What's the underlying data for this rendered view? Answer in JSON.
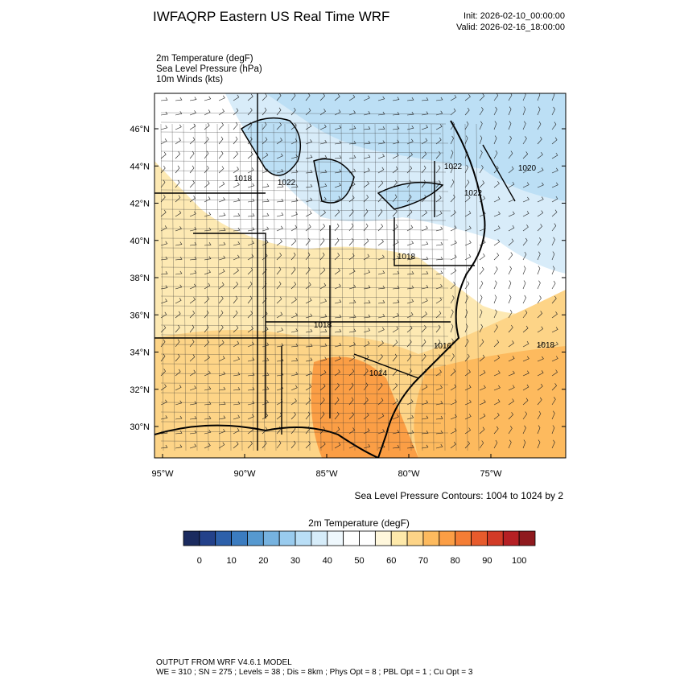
{
  "header": {
    "title": "IWFAQRP Eastern US Real Time WRF",
    "init": "Init: 2026-02-10_00:00:00",
    "valid": "Valid: 2026-02-16_18:00:00"
  },
  "fields": [
    "2m Temperature   (degF)",
    "Sea Level Pressure   (hPa)",
    "10m Winds   (kts)"
  ],
  "map": {
    "lat_labels": [
      "46°N",
      "44°N",
      "42°N",
      "40°N",
      "38°N",
      "36°N",
      "34°N",
      "32°N",
      "30°N"
    ],
    "lon_labels": [
      "95°W",
      "90°W",
      "85°W",
      "80°W",
      "75°W"
    ],
    "contour_labels": [
      "1018",
      "1022",
      "1022",
      "1022",
      "1020",
      "1018",
      "1018",
      "1016",
      "1014",
      "1018"
    ],
    "contour_note": "Sea Level Pressure Contours: 1004 to 1024 by 2"
  },
  "colorbar": {
    "title": "2m Temperature  (degF)",
    "labels": [
      "0",
      "10",
      "20",
      "30",
      "40",
      "50",
      "60",
      "70",
      "80",
      "90",
      "100"
    ],
    "colors": [
      "#1b2b5f",
      "#23418a",
      "#2d60aa",
      "#3b7cc0",
      "#5699d0",
      "#76b2df",
      "#99cbee",
      "#b9def6",
      "#d6ecf9",
      "#eff8fd",
      "#ffffff",
      "#ffffff",
      "#fff7dc",
      "#fee9aa",
      "#fdd487",
      "#fdba5e",
      "#fb9e45",
      "#f47d35",
      "#e75b2c",
      "#d23b27",
      "#b52024",
      "#8f1a1e"
    ]
  },
  "footer": {
    "line1": "OUTPUT FROM WRF V4.6.1 MODEL",
    "line2": "WE = 310 ; SN = 275 ; Levels = 38 ; Dis = 8km ; Phys Opt = 8 ; PBL Opt = 1 ; Cu Opt = 3"
  }
}
